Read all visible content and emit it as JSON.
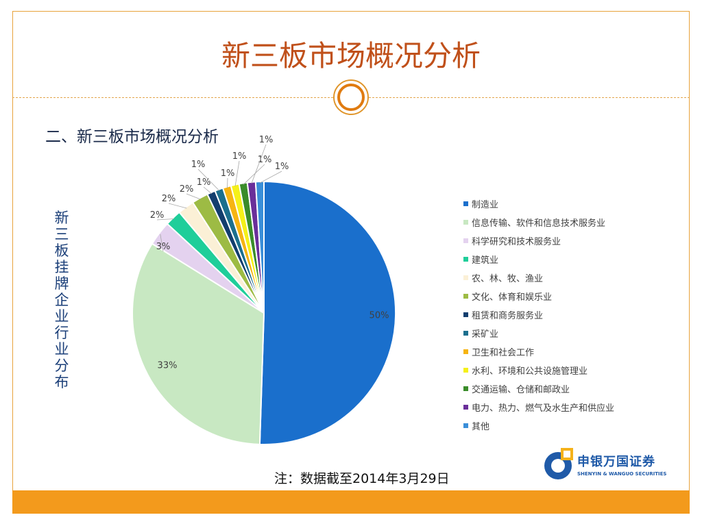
{
  "slide": {
    "title": "新三板市场概况分析",
    "subtitle": "二、新三板市场概况分析",
    "side_label": "新三板挂牌企业行业分布",
    "note": "注：数据截至2014年3月29日"
  },
  "logo": {
    "name": "申银万国证券",
    "name_en": "SHENYIN & WANGUO SECURITIES"
  },
  "colors": {
    "accent": "#e07b10",
    "title": "#c0501a",
    "footer": "#f39a1c"
  },
  "chart_data": {
    "type": "pie",
    "title": "",
    "legend_position": "right",
    "start_angle_deg": 0,
    "direction": "clockwise",
    "slices": [
      {
        "name": "制造业",
        "value": 50,
        "label": "50%",
        "color": "#1a6fcc"
      },
      {
        "name": "信息传输、软件和信息技术服务业",
        "value": 33,
        "label": "33%",
        "color": "#c8e8c2"
      },
      {
        "name": "科学研究和技术服务业",
        "value": 3,
        "label": "3%",
        "color": "#e4d2ef"
      },
      {
        "name": "建筑业",
        "value": 2,
        "label": "2%",
        "color": "#1fce9a"
      },
      {
        "name": "农、林、牧、渔业",
        "value": 2,
        "label": "2%",
        "color": "#fbf0d6"
      },
      {
        "name": "文化、体育和娱乐业",
        "value": 2,
        "label": "2%",
        "color": "#9dbb44"
      },
      {
        "name": "租赁和商务服务业",
        "value": 1,
        "label": "1%",
        "color": "#123e6e"
      },
      {
        "name": "采矿业",
        "value": 1,
        "label": "1%",
        "color": "#1b6f8e"
      },
      {
        "name": "卫生和社会工作",
        "value": 1,
        "label": "1%",
        "color": "#f6b412"
      },
      {
        "name": "水利、环境和公共设施管理业",
        "value": 1,
        "label": "1%",
        "color": "#f5f01a"
      },
      {
        "name": "交通运输、仓储和邮政业",
        "value": 1,
        "label": "1%",
        "color": "#3a8c2a"
      },
      {
        "name": "电力、热力、燃气及水生产和供应业",
        "value": 1,
        "label": "1%",
        "color": "#6a2f9a"
      },
      {
        "name": "其他",
        "value": 1,
        "label": "1%",
        "color": "#3a8ed8"
      }
    ]
  }
}
